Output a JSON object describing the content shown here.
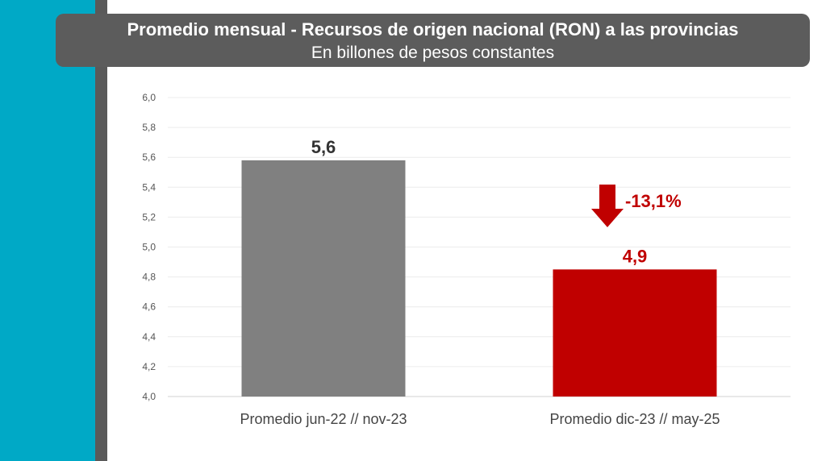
{
  "title": "Promedio mensual - Recursos de origen nacional (RON) a las provincias",
  "subtitle": "En billones de pesos constantes",
  "colors": {
    "teal": "#00a9c6",
    "gray_bar": "#808080",
    "red_bar": "#c00000",
    "title_bg": "#5c5c5c"
  },
  "annotation": {
    "text": "-13,1%",
    "icon": "down-arrow-icon",
    "color": "#c00000"
  },
  "chart_data": {
    "type": "bar",
    "title": "Promedio mensual - Recursos de origen nacional (RON) a las provincias",
    "subtitle": "En billones de pesos constantes",
    "xlabel": "",
    "ylabel": "",
    "categories": [
      "Promedio jun-22 // nov-23",
      "Promedio dic-23 // may-25"
    ],
    "values": [
      5.58,
      4.85
    ],
    "value_labels": [
      "5,6",
      "4,9"
    ],
    "bar_colors": [
      "#808080",
      "#c00000"
    ],
    "label_colors": [
      "#333333",
      "#c00000"
    ],
    "ylim": [
      4.0,
      6.0
    ],
    "yticks": [
      4.0,
      4.2,
      4.4,
      4.6,
      4.8,
      5.0,
      5.2,
      5.4,
      5.6,
      5.8,
      6.0
    ],
    "ytick_labels": [
      "4,0",
      "4,2",
      "4,4",
      "4,6",
      "4,8",
      "5,0",
      "5,2",
      "5,4",
      "5,6",
      "5,8",
      "6,0"
    ],
    "grid": true,
    "legend": "none"
  }
}
